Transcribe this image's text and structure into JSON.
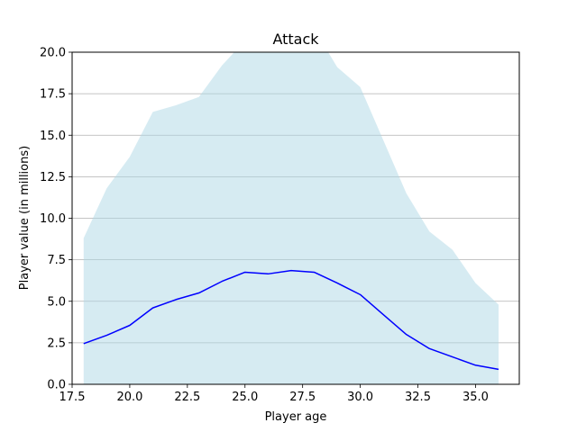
{
  "chart_data": {
    "type": "line",
    "title": "Attack",
    "xlabel": "Player age",
    "ylabel": "Player value (in millions)",
    "xlim": [
      17.5,
      36.9
    ],
    "ylim": [
      0,
      20
    ],
    "x_ticks": [
      17.5,
      20.0,
      22.5,
      25.0,
      27.5,
      30.0,
      32.5,
      35.0
    ],
    "x_tick_labels": [
      "17.5",
      "20.0",
      "22.5",
      "25.0",
      "27.5",
      "30.0",
      "32.5",
      "35.0"
    ],
    "y_ticks": [
      0,
      2.5,
      5,
      7.5,
      10,
      12.5,
      15,
      17.5,
      20
    ],
    "y_tick_labels": [
      "0.0",
      "2.5",
      "5.0",
      "7.5",
      "10.0",
      "12.5",
      "15.0",
      "17.5",
      "20.0"
    ],
    "grid": "horizontal",
    "x": [
      18,
      19,
      20,
      21,
      22,
      23,
      24,
      25,
      26,
      27,
      28,
      29,
      30,
      31,
      32,
      33,
      34,
      35,
      36
    ],
    "series": [
      {
        "values": [
          2.45,
          2.95,
          3.55,
          4.6,
          5.1,
          5.5,
          6.2,
          6.75,
          6.65,
          6.85,
          6.75,
          6.1,
          5.4,
          4.2,
          3.0,
          2.15,
          1.65,
          1.15,
          0.9
        ],
        "color": "#0000ff"
      }
    ],
    "band": {
      "lower": [
        0,
        0,
        0,
        0,
        0,
        0,
        0,
        0,
        0,
        0,
        0,
        0,
        0,
        0,
        0,
        0,
        0,
        0,
        0
      ],
      "upper": [
        8.8,
        11.8,
        13.7,
        16.4,
        16.8,
        17.3,
        19.2,
        20.7,
        20.7,
        21.0,
        21.4,
        19.1,
        17.9,
        14.7,
        11.5,
        9.2,
        8.1,
        6.1,
        4.8
      ],
      "color": "#add8e6"
    }
  }
}
